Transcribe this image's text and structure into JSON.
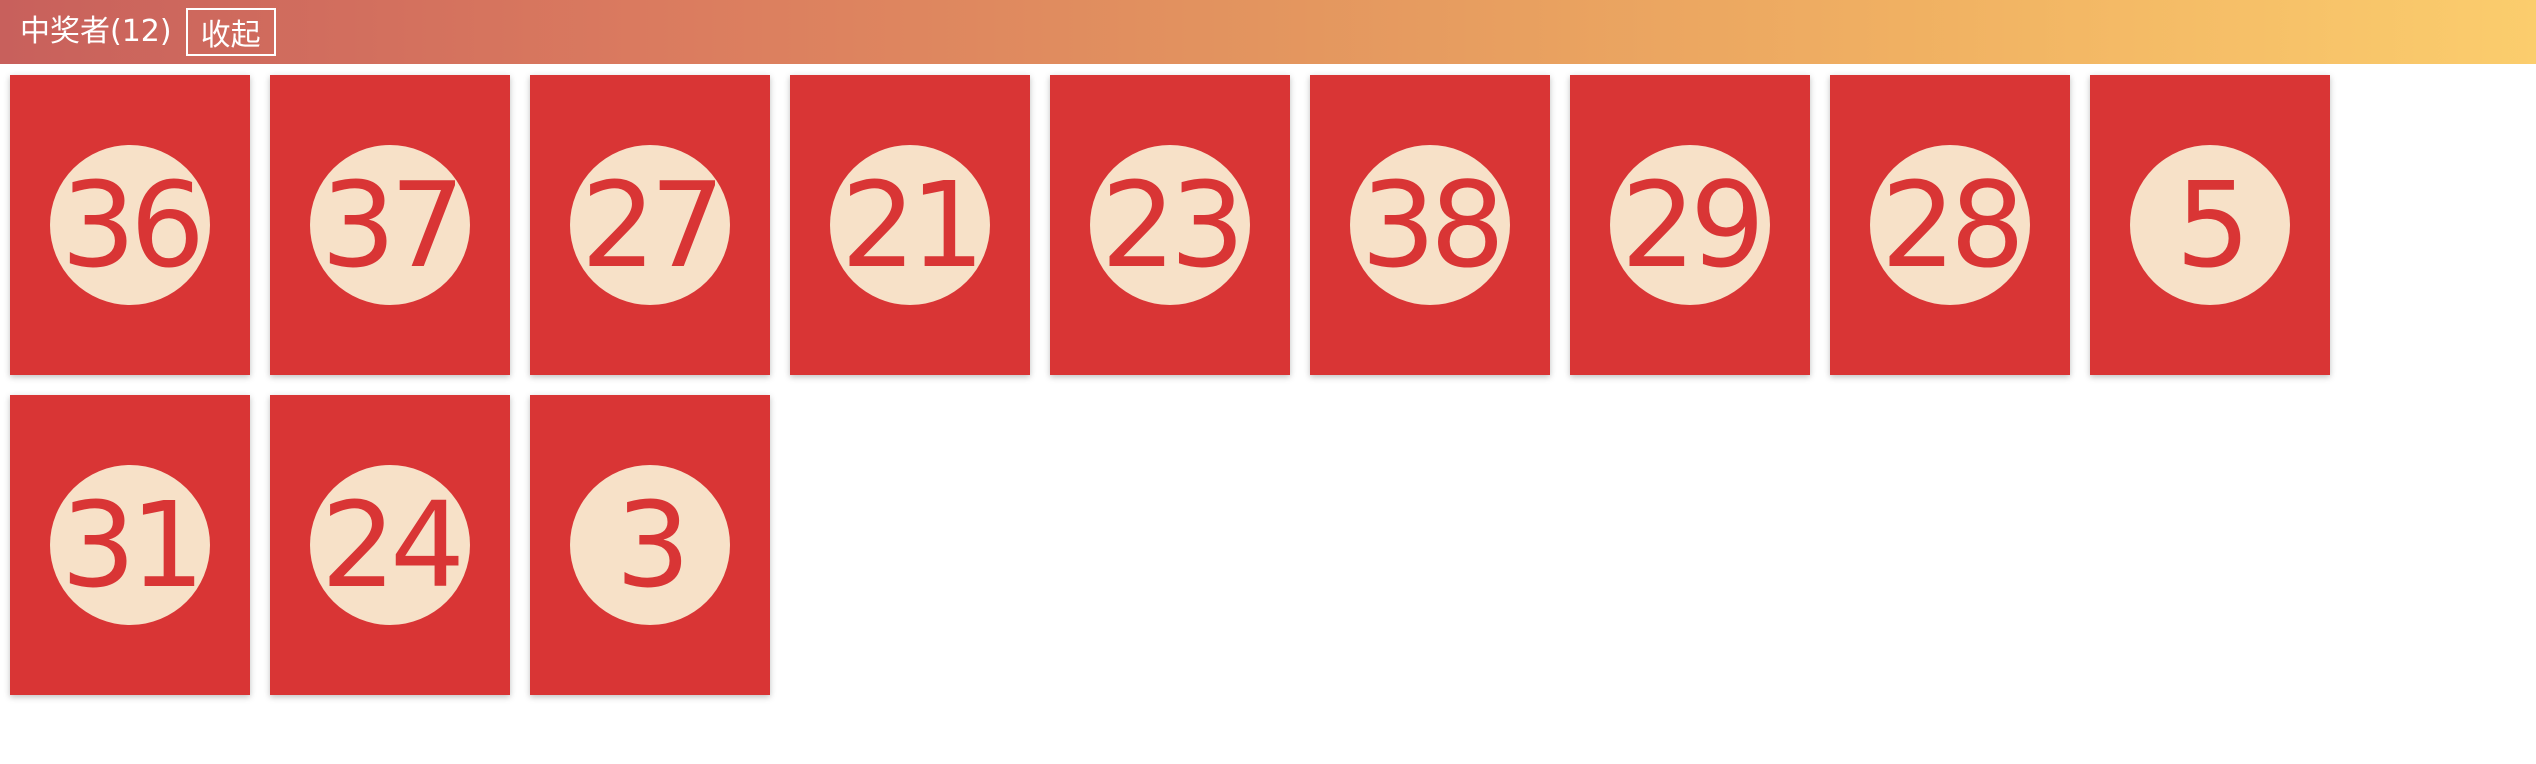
{
  "header": {
    "title": "中奖者(12)",
    "collapse_label": "收起"
  },
  "winners": [
    {
      "number": "36"
    },
    {
      "number": "37"
    },
    {
      "number": "27"
    },
    {
      "number": "21"
    },
    {
      "number": "23"
    },
    {
      "number": "38"
    },
    {
      "number": "29"
    },
    {
      "number": "28"
    },
    {
      "number": "5"
    },
    {
      "number": "31"
    },
    {
      "number": "24"
    },
    {
      "number": "3"
    }
  ],
  "colors": {
    "card": "#d93535",
    "ball": "#f7e1c8",
    "header_gradient_start": "#c8605c",
    "header_gradient_end": "#fbcd6d"
  }
}
